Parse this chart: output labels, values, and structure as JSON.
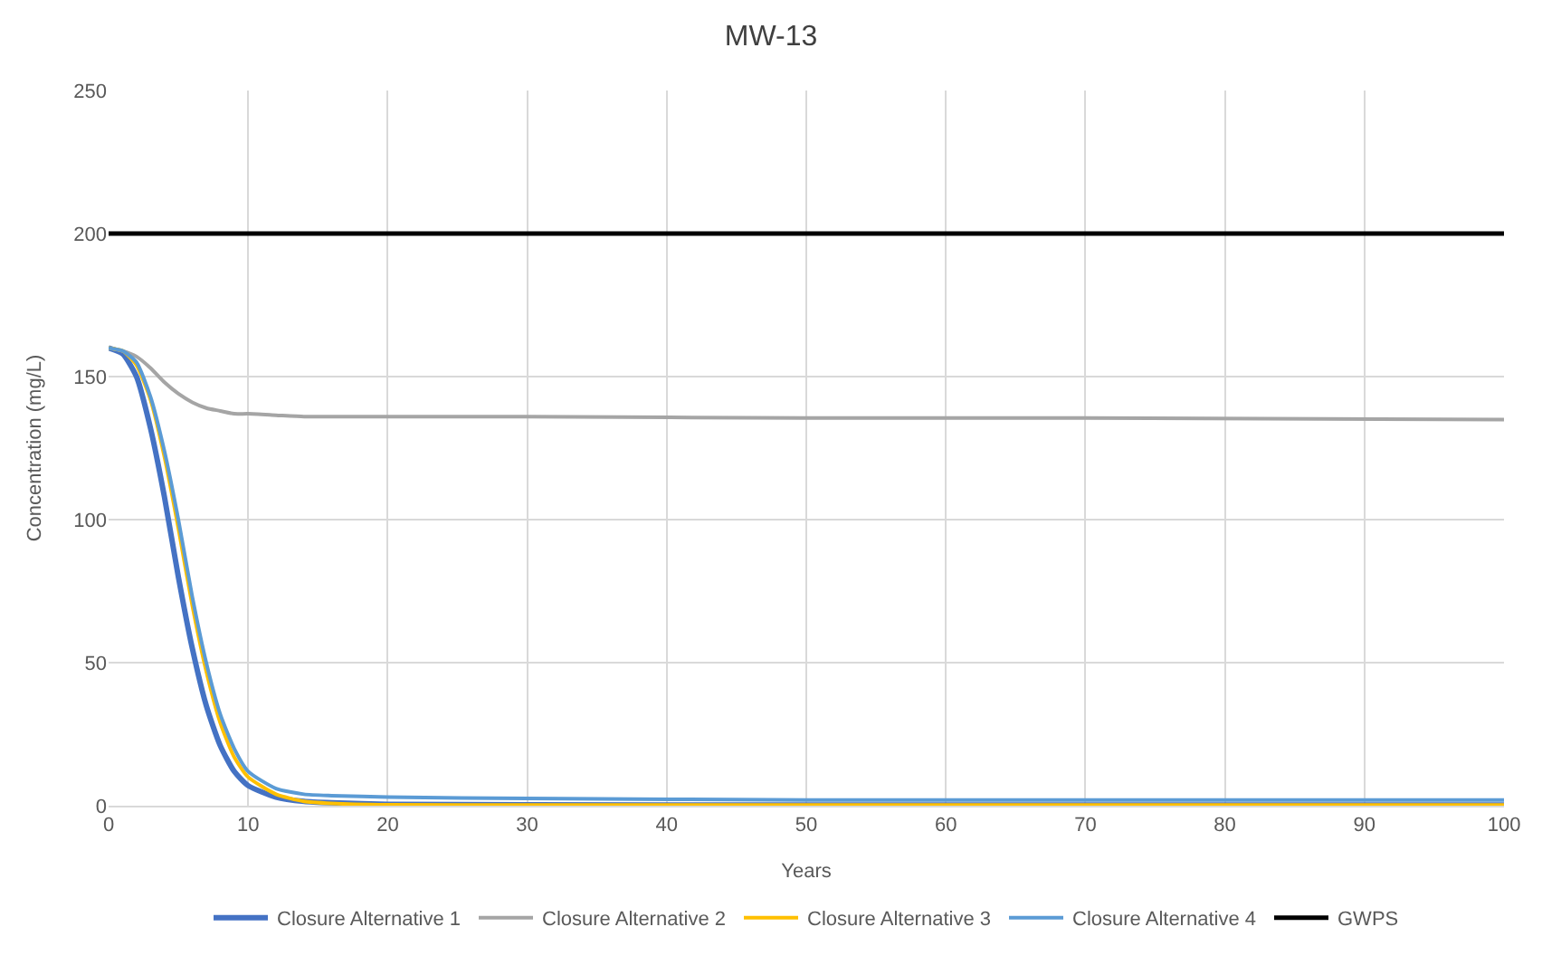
{
  "chart_data": {
    "type": "line",
    "title": "MW-13",
    "xlabel": "Years",
    "ylabel": "Concentration (mg/L)",
    "x": [
      0,
      1,
      2,
      3,
      4,
      5,
      6,
      7,
      8,
      9,
      10,
      12,
      14,
      16,
      20,
      30,
      50,
      70,
      100
    ],
    "series": [
      {
        "name": "Closure Alternative 1",
        "color": "#4472c4",
        "values": [
          160,
          158,
          150,
          132,
          108,
          80,
          55,
          35,
          21,
          12,
          7,
          3,
          1.5,
          1,
          0.5,
          0.3,
          0.2,
          0.2,
          0.2
        ]
      },
      {
        "name": "Closure Alternative 2",
        "color": "#a5a5a5",
        "values": [
          160,
          159,
          157,
          153,
          148,
          144,
          141,
          139,
          138,
          137,
          137,
          136.5,
          136,
          136,
          136,
          136,
          135.5,
          135.5,
          135
        ]
      },
      {
        "name": "Closure Alternative 3",
        "color": "#ffc000",
        "values": [
          160,
          159,
          154,
          142,
          122,
          97,
          70,
          47,
          29,
          17,
          10,
          4,
          1.5,
          0.8,
          0.3,
          0.2,
          0.2,
          0.2,
          0.2
        ]
      },
      {
        "name": "Closure Alternative 4",
        "color": "#5b9bd5",
        "values": [
          160,
          159,
          155,
          143,
          124,
          100,
          73,
          50,
          32,
          20,
          12,
          6,
          4,
          3.5,
          3,
          2.5,
          2,
          2,
          2
        ]
      },
      {
        "name": "GWPS",
        "color": "#000000",
        "values": [
          200,
          200,
          200,
          200,
          200,
          200,
          200,
          200,
          200,
          200,
          200,
          200,
          200,
          200,
          200,
          200,
          200,
          200,
          200
        ]
      }
    ],
    "xlim": [
      0,
      100
    ],
    "xticks": [
      0,
      10,
      20,
      30,
      40,
      50,
      60,
      70,
      80,
      90,
      100
    ],
    "ylim": [
      0,
      250
    ],
    "yticks": [
      0,
      50,
      100,
      150,
      200,
      250
    ],
    "grid": true,
    "legend": "bottom",
    "marker": "none",
    "line_style": "solid"
  }
}
